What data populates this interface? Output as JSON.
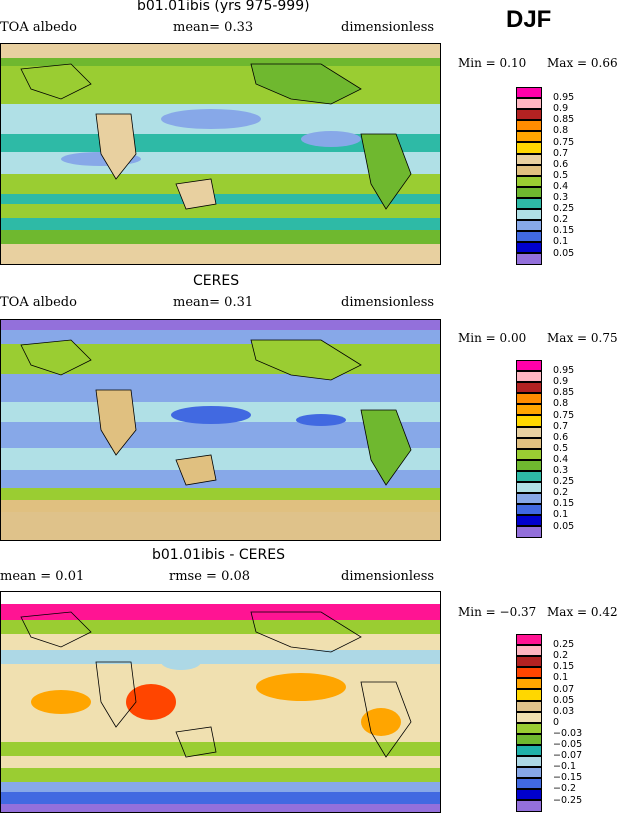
{
  "season": "DJF",
  "colors_abs": [
    "#ff00aa",
    "#ffb6c1",
    "#b22222",
    "#ff8c00",
    "#ffa500",
    "#ffd700",
    "#e8d0a0",
    "#e0c080",
    "#9acd32",
    "#6fb82f",
    "#2ebaa6",
    "#b0e0e6",
    "#87a8e8",
    "#4169e1",
    "#0000cd",
    "#9370db"
  ],
  "colors_diff": [
    "#ff1493",
    "#ffb6c1",
    "#b22222",
    "#ff4500",
    "#ffa500",
    "#ffd700",
    "#dfc28a",
    "#f0e0b0",
    "#9acd32",
    "#6fb82f",
    "#20b2aa",
    "#add8e6",
    "#87a8e8",
    "#4169e1",
    "#0000cd",
    "#9370db"
  ],
  "panels": [
    {
      "title": "b01.01ibis (yrs 975-999)",
      "left_label": "TOA albedo",
      "mid_label": "mean=   0.33",
      "right_label": "dimensionless",
      "min_text": "Min =    0.10",
      "max_text": "Max =    0.66",
      "legend": [
        "0.95",
        "0.9",
        "0.85",
        "0.8",
        "0.75",
        "0.7",
        "0.6",
        "0.5",
        "0.4",
        "0.3",
        "0.25",
        "0.2",
        "0.15",
        "0.1",
        "0.05"
      ]
    },
    {
      "title": "CERES",
      "left_label": "TOA albedo",
      "mid_label": "mean=   0.31",
      "right_label": "dimensionless",
      "min_text": "Min =    0.00",
      "max_text": "Max =    0.75",
      "legend": [
        "0.95",
        "0.9",
        "0.85",
        "0.8",
        "0.75",
        "0.7",
        "0.6",
        "0.5",
        "0.4",
        "0.3",
        "0.25",
        "0.2",
        "0.15",
        "0.1",
        "0.05"
      ]
    },
    {
      "title": "b01.01ibis - CERES",
      "left_label": "mean =    0.01",
      "mid_label": "rmse =    0.08",
      "right_label": "dimensionless",
      "min_text": "Min =  −0.37",
      "max_text": "Max =    0.42",
      "legend": [
        "0.25",
        "0.2",
        "0.15",
        "0.1",
        "0.07",
        "0.05",
        "0.03",
        "0",
        "−0.03",
        "−0.05",
        "−0.07",
        "−0.1",
        "−0.15",
        "−0.2",
        "−0.25"
      ]
    }
  ],
  "chart_data": [
    {
      "type": "heatmap",
      "title": "b01.01ibis (yrs 975-999)",
      "variable": "TOA albedo",
      "units": "dimensionless",
      "mean": 0.33,
      "min": 0.1,
      "max": 0.66,
      "levels": [
        0.05,
        0.1,
        0.15,
        0.2,
        0.25,
        0.3,
        0.4,
        0.5,
        0.6,
        0.7,
        0.75,
        0.8,
        0.85,
        0.9,
        0.95
      ]
    },
    {
      "type": "heatmap",
      "title": "CERES",
      "variable": "TOA albedo",
      "units": "dimensionless",
      "mean": 0.31,
      "min": 0.0,
      "max": 0.75,
      "levels": [
        0.05,
        0.1,
        0.15,
        0.2,
        0.25,
        0.3,
        0.4,
        0.5,
        0.6,
        0.7,
        0.75,
        0.8,
        0.85,
        0.9,
        0.95
      ]
    },
    {
      "type": "heatmap",
      "title": "b01.01ibis - CERES",
      "units": "dimensionless",
      "mean": 0.01,
      "rmse": 0.08,
      "min": -0.37,
      "max": 0.42,
      "levels": [
        -0.25,
        -0.2,
        -0.15,
        -0.1,
        -0.07,
        -0.05,
        -0.03,
        0,
        0.03,
        0.05,
        0.07,
        0.1,
        0.15,
        0.2,
        0.25
      ]
    }
  ]
}
